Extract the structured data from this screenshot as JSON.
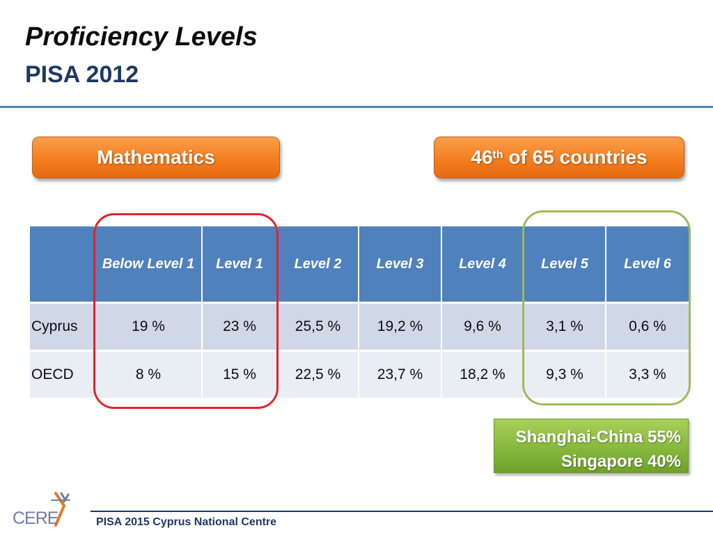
{
  "header": {
    "title": "Proficiency Levels",
    "subtitle": "PISA 2012"
  },
  "subject_pill": {
    "label": "Mathematics"
  },
  "rank_pill": {
    "rank": "46",
    "suffix": "th",
    "text": "of 65 countries"
  },
  "table": {
    "columns": [
      "",
      "Below Level 1",
      "Level 1",
      "Level 2",
      "Level 3",
      "Level 4",
      "Level 5",
      "Level 6"
    ],
    "rows": [
      {
        "label": "Cyprus",
        "values": [
          "19 %",
          "23 %",
          "25,5 %",
          "19,2 %",
          "9,6 %",
          "3,1 %",
          "0,6 %"
        ]
      },
      {
        "label": "OECD",
        "values": [
          "8 %",
          "15 %",
          "22,5 %",
          "23,7 %",
          "18,2 %",
          "9,3 %",
          "3,3 %"
        ]
      }
    ]
  },
  "highlight_box": {
    "line1": "Shanghai-China 55%",
    "line2": "Singapore 40%"
  },
  "footer": {
    "text": "PISA 2015 Cyprus National Centre",
    "logo_text": "CERE"
  },
  "colors": {
    "accent_blue": "#4f81bd",
    "pill_orange": "#f47d20",
    "box_green": "#84b63a",
    "ring_red": "#e8202a",
    "ring_green": "#9bbb59",
    "title_navy": "#1f3864"
  }
}
